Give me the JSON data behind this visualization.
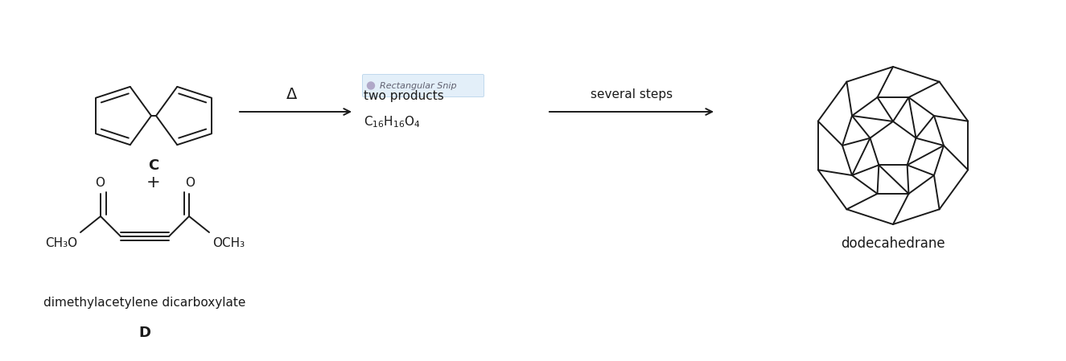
{
  "bg_color": "#ffffff",
  "text_color": "#000000",
  "line_color": "#1a1a1a",
  "line_width": 1.4,
  "arrow_color": "#1a1a1a",
  "label_arrow1_above": "Δ",
  "label_arrow1_below1": "two products",
  "label_arrow2_above": "several steps",
  "label_C": "C",
  "label_D": "D",
  "label_plus": "+",
  "label_dodecahedrane": "dodecahedrane",
  "label_CH3O": "CH₃O",
  "label_OCH3": "OCH₃",
  "label_O_left": "O",
  "label_O_right": "O",
  "snip_text": "Rectangular Snip",
  "figsize": [
    13.25,
    4.49
  ],
  "dpi": 100
}
